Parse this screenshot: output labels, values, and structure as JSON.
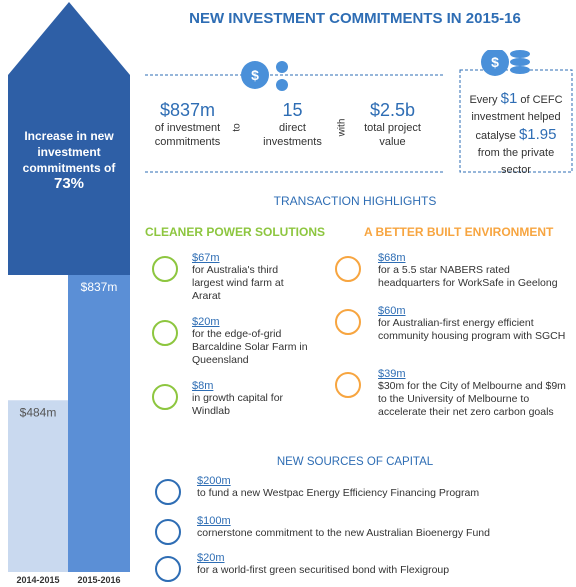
{
  "chart_data": {
    "type": "bar",
    "categories": [
      "2014-2015",
      "2015-2016"
    ],
    "values": [
      484,
      837
    ],
    "value_labels": [
      "$484m",
      "$837m"
    ],
    "colors": [
      "#c9d9ef",
      "#5b8fd6"
    ],
    "annotation": "Increase in new investment commitments of",
    "annotation_value": "73%"
  },
  "header": {
    "title": "NEW INVESTMENT COMMITMENTS IN 2015-16"
  },
  "stats": {
    "items": [
      {
        "value": "$837m",
        "label": "of investment commitments"
      },
      {
        "value": "15",
        "label": "direct investments"
      },
      {
        "value": "$2.5b",
        "label": "total project value"
      }
    ],
    "connectors": [
      "to",
      "with"
    ]
  },
  "catalyst": [
    "Every",
    "$1",
    "of CEFC investment helped catalyse",
    "$1.95",
    "from the private sector"
  ],
  "highlights": {
    "title": "TRANSACTION HIGHLIGHTS",
    "clean": {
      "title": "CLEANER POWER SOLUTIONS",
      "items": [
        {
          "amount": "$67m",
          "text": "for Australia's third largest wind farm at Ararat"
        },
        {
          "amount": "$20m",
          "text": "for the edge-of-grid Barcaldine Solar Farm in Queensland"
        },
        {
          "amount": "$8m",
          "text": "in growth capital for Windlab"
        }
      ]
    },
    "built": {
      "title": "A BETTER BUILT ENVIRONMENT",
      "items": [
        {
          "amount": "$68m",
          "text": "for a 5.5 star NABERS rated headquarters for WorkSafe in Geelong"
        },
        {
          "amount": "$60m",
          "text": "for Australian-first energy efficient community housing program with SGCH"
        },
        {
          "amount": "$39m",
          "text": "$30m for the City of Melbourne and $9m to the University of Melbourne to accelerate their net zero carbon goals"
        }
      ]
    }
  },
  "capital": {
    "title": "NEW SOURCES OF CAPITAL",
    "items": [
      {
        "amount": "$200m",
        "text": "to fund a new Westpac Energy Efficiency Financing Program"
      },
      {
        "amount": "$100m",
        "text": "cornerstone commitment to the new Australian Bioenergy Fund"
      },
      {
        "amount": "$20m",
        "text": "for a world-first green securitised bond with Flexigroup"
      }
    ]
  }
}
